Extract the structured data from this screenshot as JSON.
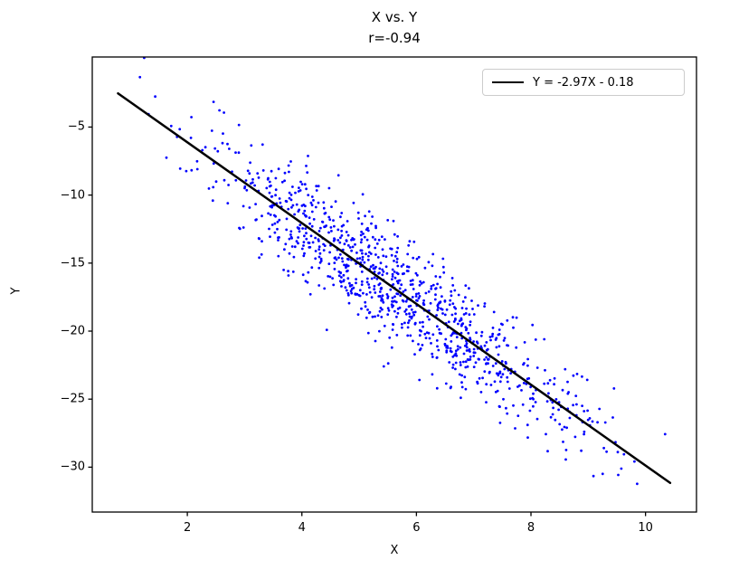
{
  "chart_data": {
    "type": "scatter",
    "title": "X vs. Y",
    "subtitle": "r=-0.94",
    "xlabel": "X",
    "ylabel": "Y",
    "xlim": [
      0.34,
      10.89
    ],
    "ylim": [
      -33.3,
      0.15
    ],
    "xticks": [
      2,
      4,
      6,
      8,
      10
    ],
    "yticks": [
      -5,
      -10,
      -15,
      -20,
      -25,
      -30
    ],
    "grid": false,
    "point_color": "#0000ff",
    "point_radius": 1.4,
    "frame_color": "#000000",
    "regression_line": {
      "label": "Y = -2.97X - 0.18",
      "slope": -2.97,
      "intercept": -0.18,
      "x_start": 0.79,
      "x_end": 10.43,
      "color": "#000000",
      "width": 2.5,
      "r": -0.94
    },
    "legend": {
      "position": "upper right",
      "entries": [
        "Y = -2.97X - 0.18"
      ]
    },
    "scatter_generator": {
      "comment": "cloud of ~1000 points: y = slope*x + intercept + N(0, noise_sd); x ~ N(x_mean, x_sd) truncated",
      "seed": 42,
      "n": 1000,
      "x_mean": 5.6,
      "x_sd": 1.75,
      "x_min": 0.75,
      "x_max": 10.45,
      "noise_sd": 2.0
    }
  }
}
